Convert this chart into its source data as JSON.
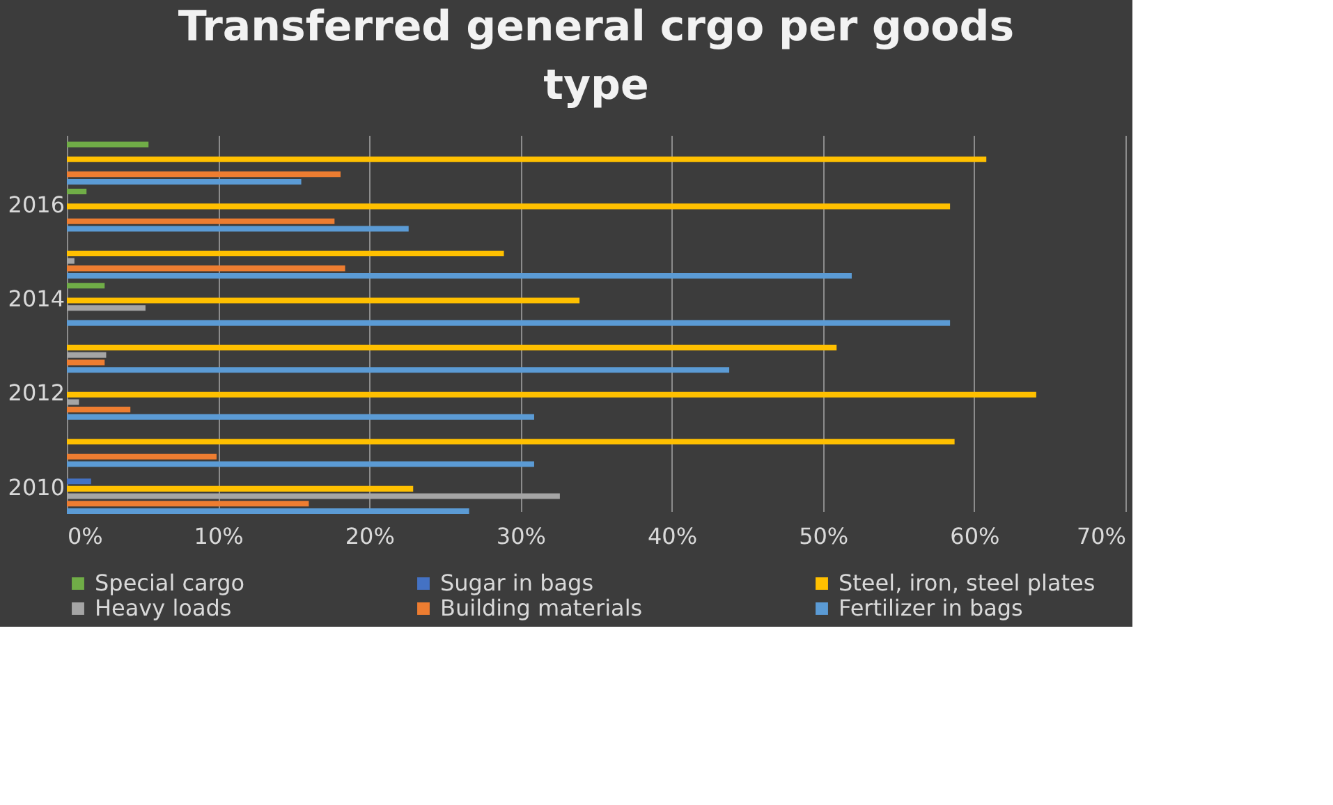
{
  "chart_data": {
    "type": "bar",
    "orientation": "horizontal",
    "title": "Transferred general crgo per goods type",
    "categories": [
      null,
      "2016",
      null,
      "2014",
      null,
      "2012",
      null,
      "2010"
    ],
    "series": [
      {
        "name": "Special cargo",
        "color": "#70ad47",
        "values": [
          5.4,
          1.3,
          null,
          2.5,
          null,
          null,
          null,
          null
        ]
      },
      {
        "name": "Sugar in bags",
        "color": "#4472c4",
        "values": [
          null,
          null,
          null,
          null,
          null,
          null,
          null,
          1.6
        ]
      },
      {
        "name": "Steel, iron, steel plates",
        "color": "#ffc000",
        "values": [
          60.8,
          58.4,
          28.9,
          33.9,
          50.9,
          64.1,
          58.7,
          22.9
        ]
      },
      {
        "name": "Heavy loads",
        "color": "#a5a5a5",
        "values": [
          null,
          null,
          0.5,
          5.2,
          2.6,
          0.8,
          null,
          32.6
        ]
      },
      {
        "name": "Building materials",
        "color": "#ed7d31",
        "values": [
          18.1,
          17.7,
          18.4,
          null,
          2.5,
          4.2,
          9.9,
          16.0
        ]
      },
      {
        "name": "Fertilizer in bags",
        "color": "#5b9bd5",
        "values": [
          15.5,
          22.6,
          51.9,
          58.4,
          43.8,
          30.9,
          30.9,
          26.6
        ]
      }
    ],
    "xlim": [
      0,
      70
    ],
    "xticks": [
      {
        "value": 0,
        "label": "0%"
      },
      {
        "value": 10,
        "label": "10%"
      },
      {
        "value": 20,
        "label": "20%"
      },
      {
        "value": 30,
        "label": "30%"
      },
      {
        "value": 40,
        "label": "40%"
      },
      {
        "value": 50,
        "label": "50%"
      },
      {
        "value": 60,
        "label": "60%"
      },
      {
        "value": 70,
        "label": "70%"
      }
    ],
    "grid": "x",
    "legend": "bottom"
  }
}
